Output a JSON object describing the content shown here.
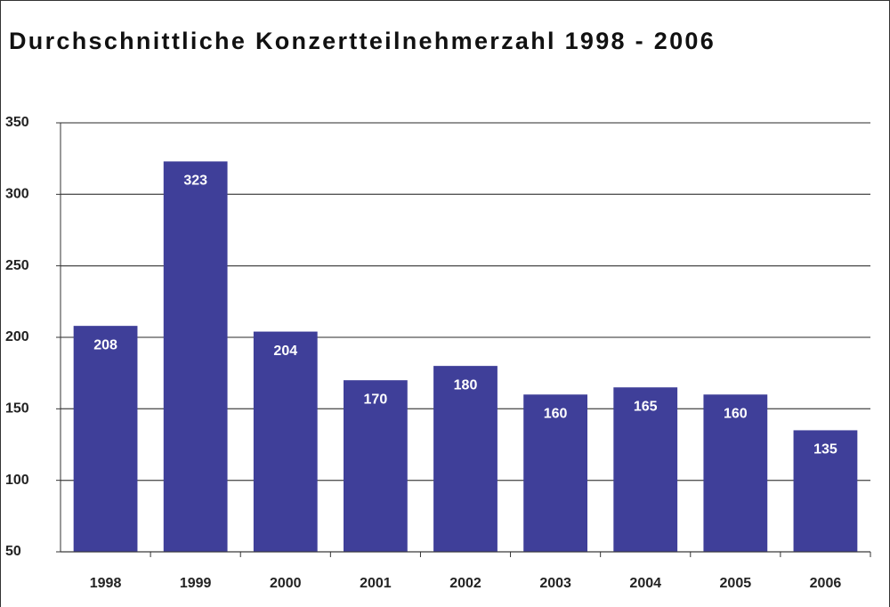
{
  "chart_data": {
    "type": "bar",
    "title": "Durchschnittliche Konzertteilnehmerzahl 1998 - 2006",
    "categories": [
      "1998",
      "1999",
      "2000",
      "2001",
      "2002",
      "2003",
      "2004",
      "2005",
      "2006"
    ],
    "values": [
      208,
      323,
      204,
      170,
      180,
      160,
      165,
      160,
      135
    ],
    "color": "#3f3f99",
    "ylim": [
      50,
      350
    ],
    "yticks": [
      50,
      100,
      150,
      200,
      250,
      300,
      350
    ],
    "grid": true
  }
}
